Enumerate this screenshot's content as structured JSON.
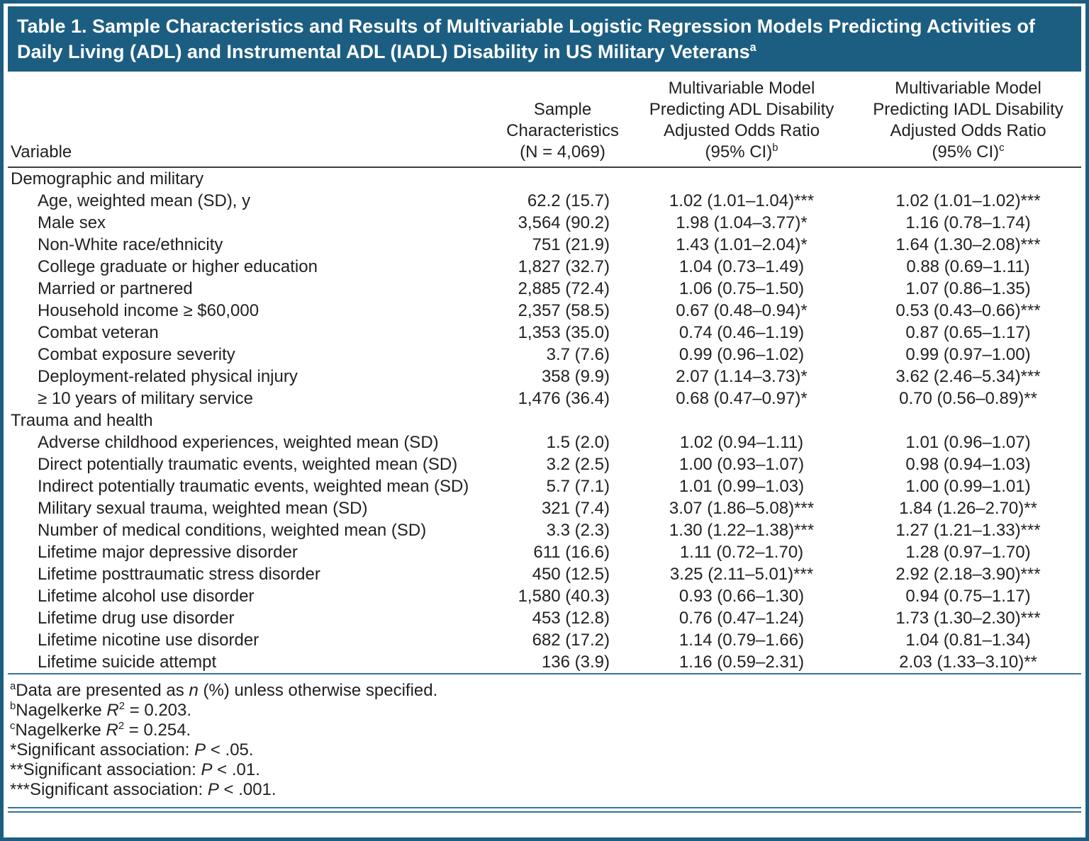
{
  "colors": {
    "accent": "#1c5e82",
    "rule_blue": "#35749e",
    "rule_dark": "#3d3d3d",
    "text": "#231f20"
  },
  "title": {
    "text": "Table 1. Sample Characteristics and Results of Multivariable Logistic Regression Models Predicting Activities of Daily Living (ADL) and Instrumental ADL (IADL) Disability in US Military Veterans",
    "superscript": "a"
  },
  "columns": {
    "variable": {
      "label": "Variable"
    },
    "sample": {
      "lines": [
        "Sample",
        "Characteristics",
        "(N = 4,069)"
      ]
    },
    "adl": {
      "lines": [
        "Multivariable Model",
        "Predicting ADL Disability",
        "Adjusted Odds Ratio",
        "(95% CI)"
      ],
      "superscript": "b"
    },
    "iadl": {
      "lines": [
        "Multivariable Model",
        "Predicting IADL Disability",
        "Adjusted Odds Ratio",
        "(95% CI)"
      ],
      "superscript": "c"
    }
  },
  "sections": [
    {
      "label": "Demographic and military",
      "rows": [
        {
          "variable": "Age, weighted mean (SD), y",
          "sample": "62.2 (15.7)",
          "adl": "1.02 (1.01–1.04)***",
          "iadl": "1.02 (1.01–1.02)***"
        },
        {
          "variable": "Male sex",
          "sample": "3,564 (90.2)",
          "adl": "1.98 (1.04–3.77)*",
          "iadl": "1.16 (0.78–1.74)"
        },
        {
          "variable": "Non-White race/ethnicity",
          "sample": "751 (21.9)",
          "adl": "1.43 (1.01–2.04)*",
          "iadl": "1.64 (1.30–2.08)***"
        },
        {
          "variable": "College graduate or higher education",
          "sample": "1,827 (32.7)",
          "adl": "1.04 (0.73–1.49)",
          "iadl": "0.88 (0.69–1.11)"
        },
        {
          "variable": "Married or partnered",
          "sample": "2,885 (72.4)",
          "adl": "1.06 (0.75–1.50)",
          "iadl": "1.07 (0.86–1.35)"
        },
        {
          "variable": "Household income ≥ $60,000",
          "sample": "2,357 (58.5)",
          "adl": "0.67 (0.48–0.94)*",
          "iadl": "0.53 (0.43–0.66)***"
        },
        {
          "variable": "Combat veteran",
          "sample": "1,353 (35.0)",
          "adl": "0.74 (0.46–1.19)",
          "iadl": "0.87 (0.65–1.17)"
        },
        {
          "variable": "Combat exposure severity",
          "sample": "3.7 (7.6)",
          "adl": "0.99 (0.96–1.02)",
          "iadl": "0.99 (0.97–1.00)"
        },
        {
          "variable": "Deployment-related physical injury",
          "sample": "358 (9.9)",
          "adl": "2.07 (1.14–3.73)*",
          "iadl": "3.62 (2.46–5.34)***"
        },
        {
          "variable": "≥ 10 years of military service",
          "sample": "1,476 (36.4)",
          "adl": "0.68 (0.47–0.97)*",
          "iadl": "0.70 (0.56–0.89)**"
        }
      ]
    },
    {
      "label": "Trauma and health",
      "rows": [
        {
          "variable": "Adverse childhood experiences, weighted mean (SD)",
          "sample": "1.5 (2.0)",
          "adl": "1.02 (0.94–1.11)",
          "iadl": "1.01 (0.96–1.07)"
        },
        {
          "variable": "Direct potentially traumatic events, weighted mean (SD)",
          "sample": "3.2 (2.5)",
          "adl": "1.00 (0.93–1.07)",
          "iadl": "0.98 (0.94–1.03)"
        },
        {
          "variable": "Indirect potentially traumatic events, weighted mean (SD)",
          "sample": "5.7 (7.1)",
          "adl": "1.01 (0.99–1.03)",
          "iadl": "1.00 (0.99–1.01)"
        },
        {
          "variable": "Military sexual trauma, weighted mean (SD)",
          "sample": "321 (7.4)",
          "adl": "3.07 (1.86–5.08)***",
          "iadl": "1.84 (1.26–2.70)**"
        },
        {
          "variable": "Number of medical conditions, weighted mean (SD)",
          "sample": "3.3 (2.3)",
          "adl": "1.30 (1.22–1.38)***",
          "iadl": "1.27 (1.21–1.33)***"
        },
        {
          "variable": "Lifetime major depressive disorder",
          "sample": "611 (16.6)",
          "adl": "1.11 (0.72–1.70)",
          "iadl": "1.28 (0.97–1.70)"
        },
        {
          "variable": "Lifetime posttraumatic stress disorder",
          "sample": "450 (12.5)",
          "adl": "3.25 (2.11–5.01)***",
          "iadl": "2.92 (2.18–3.90)***"
        },
        {
          "variable": "Lifetime alcohol use disorder",
          "sample": "1,580 (40.3)",
          "adl": "0.93 (0.66–1.30)",
          "iadl": "0.94 (0.75–1.17)"
        },
        {
          "variable": "Lifetime drug use disorder",
          "sample": "453 (12.8)",
          "adl": "0.76 (0.47–1.24)",
          "iadl": "1.73 (1.30–2.30)***"
        },
        {
          "variable": "Lifetime nicotine use disorder",
          "sample": "682 (17.2)",
          "adl": "1.14 (0.79–1.66)",
          "iadl": "1.04 (0.81–1.34)"
        },
        {
          "variable": "Lifetime suicide attempt",
          "sample": "136 (3.9)",
          "adl": "1.16 (0.59–2.31)",
          "iadl": "2.03 (1.33–3.10)**"
        }
      ]
    }
  ],
  "footnotes": [
    {
      "sup": "a",
      "parts": [
        {
          "t": "Data are presented as "
        },
        {
          "t": "n",
          "style": "italic"
        },
        {
          "t": " (%) unless otherwise specified."
        }
      ]
    },
    {
      "sup": "b",
      "parts": [
        {
          "t": "Nagelkerke "
        },
        {
          "t": "R",
          "style": "italic"
        },
        {
          "t": "2",
          "style": "sup"
        },
        {
          "t": " = 0.203."
        }
      ]
    },
    {
      "sup": "c",
      "parts": [
        {
          "t": "Nagelkerke "
        },
        {
          "t": "R",
          "style": "italic"
        },
        {
          "t": "2",
          "style": "sup"
        },
        {
          "t": " = 0.254."
        }
      ]
    },
    {
      "sup": "",
      "parts": [
        {
          "t": "*Significant association: "
        },
        {
          "t": "P",
          "style": "italic"
        },
        {
          "t": " < .05."
        }
      ]
    },
    {
      "sup": "",
      "parts": [
        {
          "t": "**Significant association: "
        },
        {
          "t": "P",
          "style": "italic"
        },
        {
          "t": " < .01."
        }
      ]
    },
    {
      "sup": "",
      "parts": [
        {
          "t": "***Significant association: "
        },
        {
          "t": "P",
          "style": "italic"
        },
        {
          "t": " < .001."
        }
      ]
    }
  ]
}
